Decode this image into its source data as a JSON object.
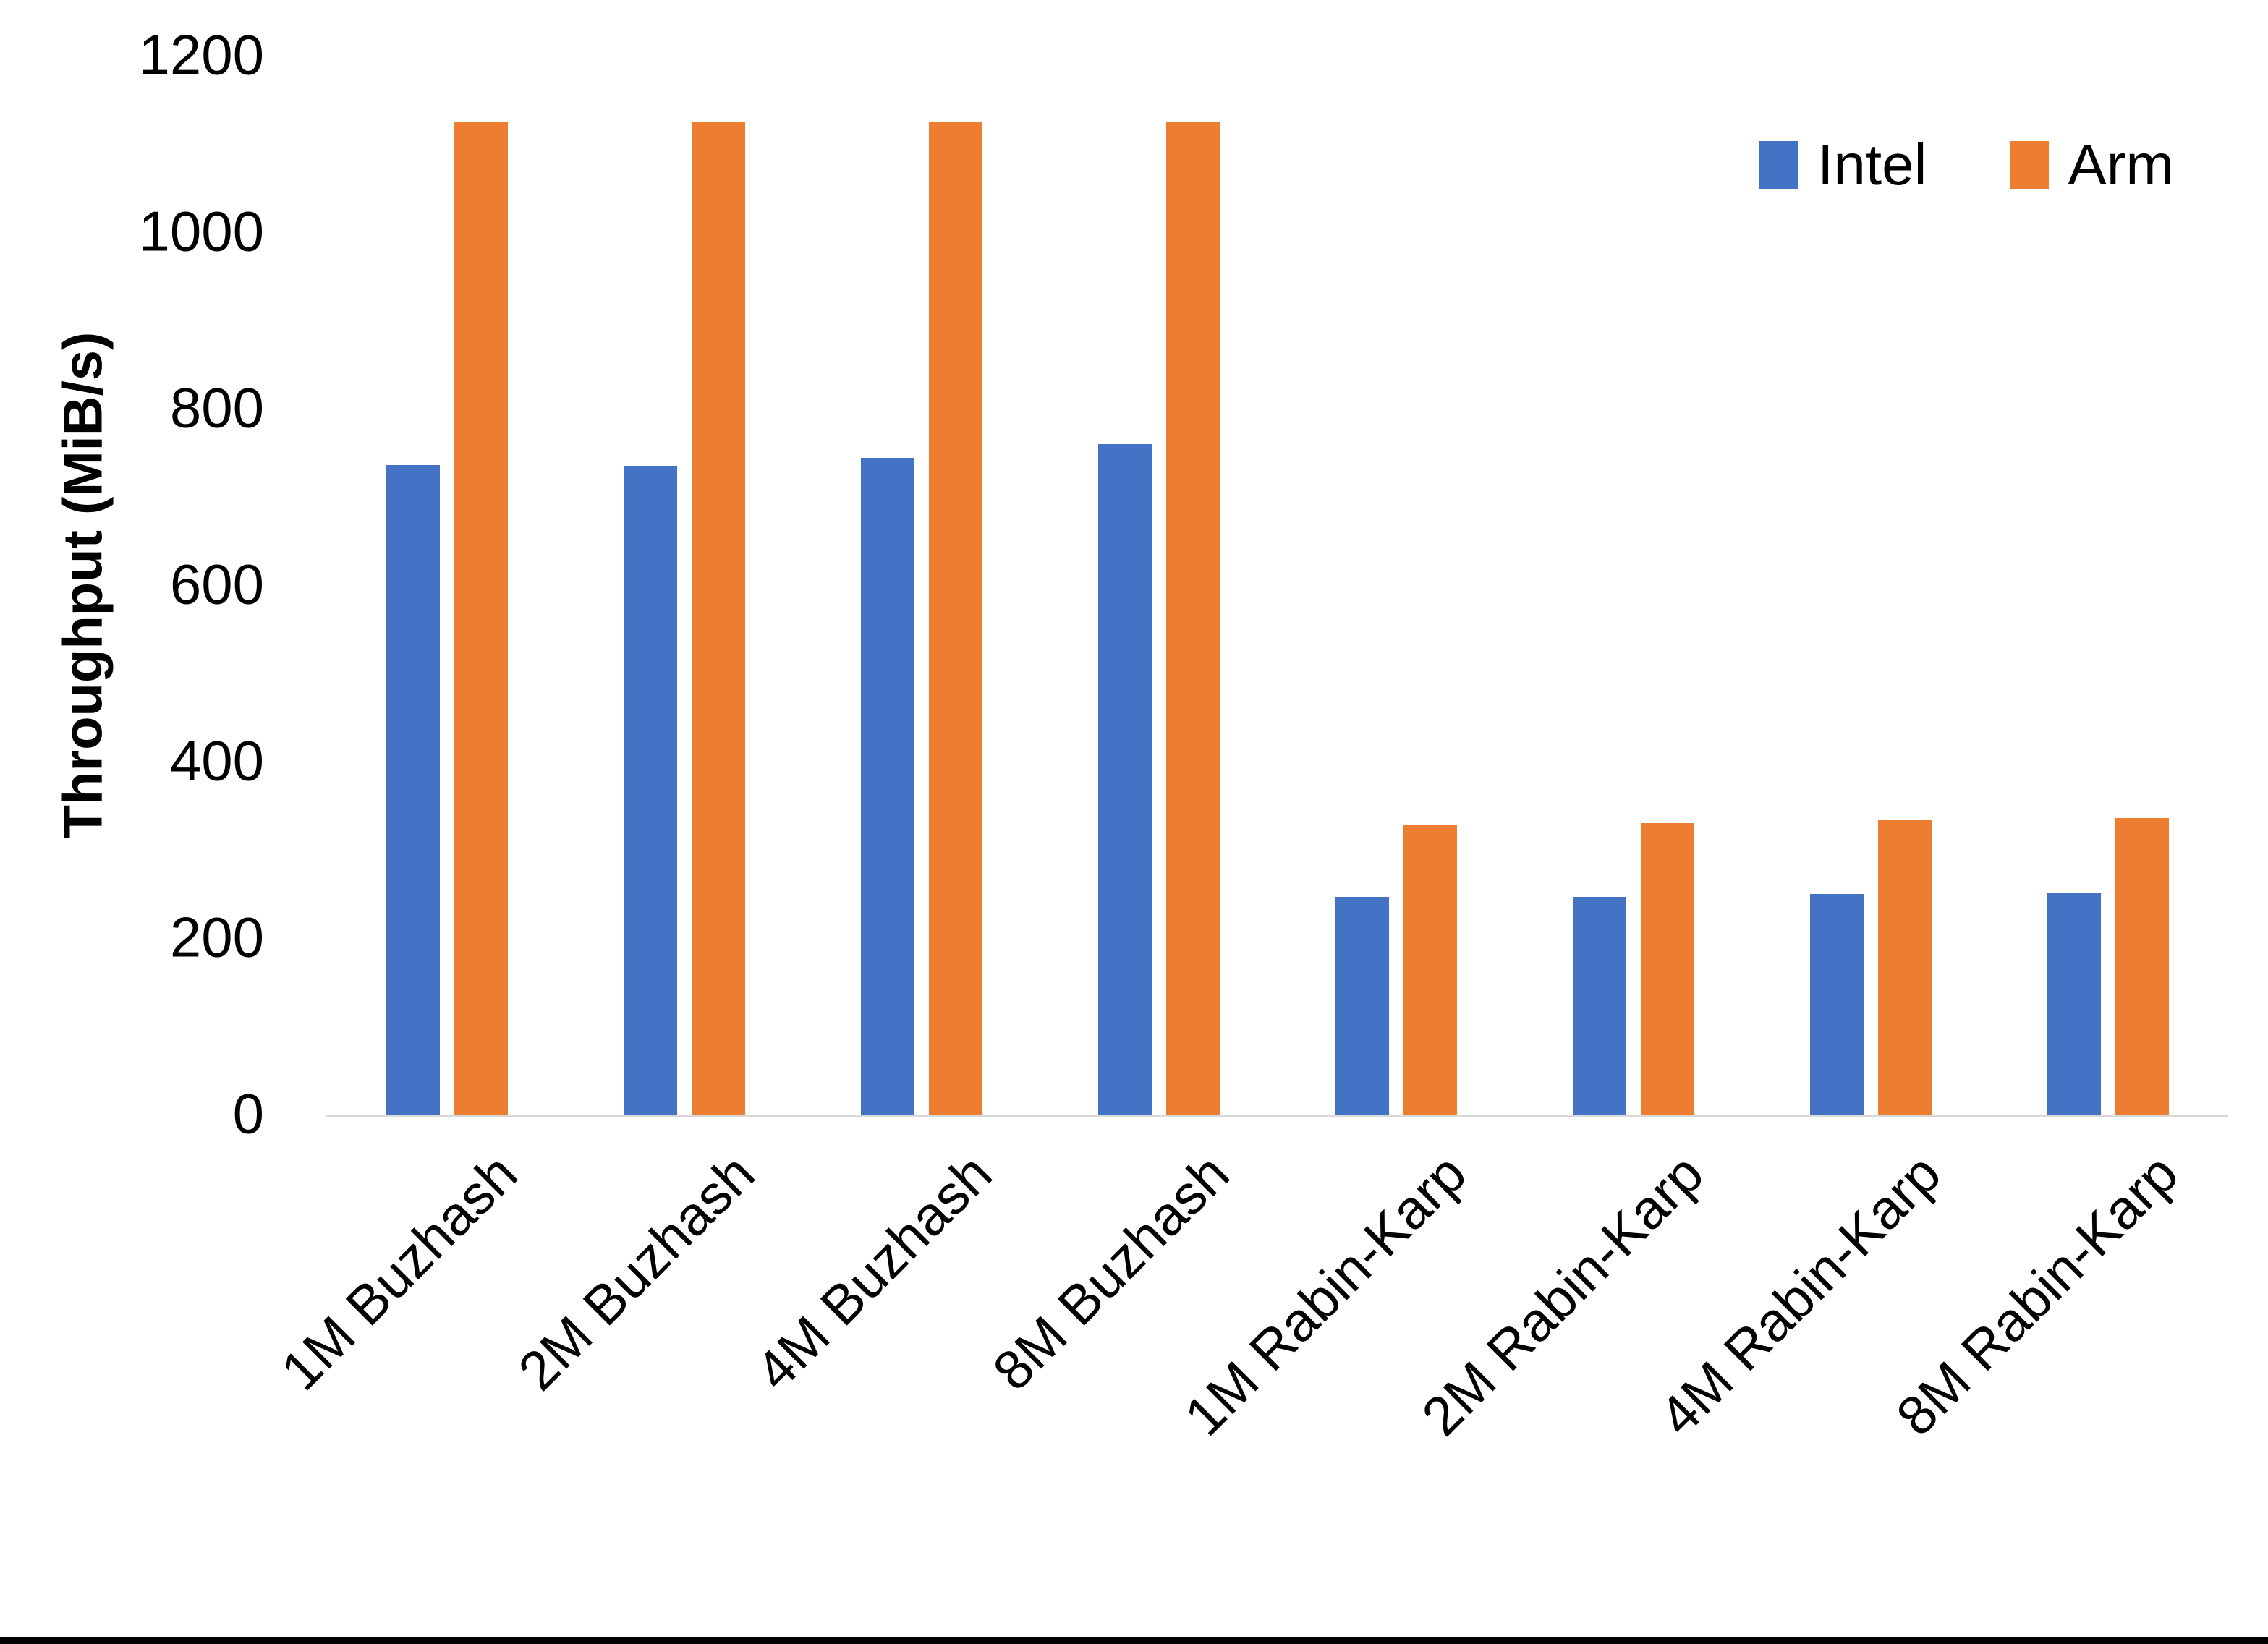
{
  "chart_data": {
    "type": "bar",
    "title": "",
    "xlabel": "",
    "ylabel": "Throughput (MiB/s)",
    "categories": [
      "1M Buzhash",
      "2M Buzhash",
      "4M Buzhash",
      "8M Buzhash",
      "1M Rabin-Karp",
      "2M Rabin-Karp",
      "4M Rabin-Karp",
      "8M Rabin-Karp"
    ],
    "series": [
      {
        "name": "Intel",
        "color": "#4472C4",
        "values": [
          736,
          735,
          744,
          760,
          247,
          247,
          250,
          251
        ]
      },
      {
        "name": "Arm",
        "color": "#ED7D31",
        "values": [
          1125,
          1125,
          1125,
          1125,
          328,
          330,
          334,
          336
        ]
      }
    ],
    "ylim": [
      0,
      1200
    ],
    "yticks": [
      0,
      200,
      400,
      600,
      800,
      1000,
      1200
    ],
    "grid": false,
    "legend_position": "top-right"
  },
  "colors": {
    "background": "#FFFFFF",
    "axis_line": "#D9D9D9",
    "text": "#000000",
    "bottom_border": "#000000"
  }
}
